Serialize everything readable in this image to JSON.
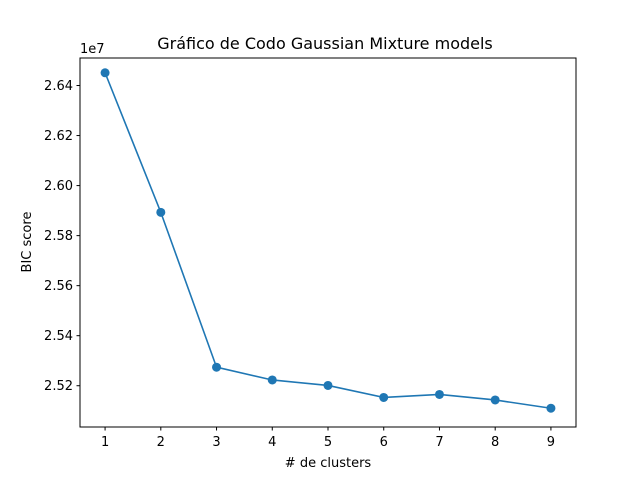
{
  "chart_data": {
    "type": "line",
    "title": "Gráfico de Codo Gaussian Mixture models",
    "xlabel": "# de clusters",
    "ylabel": "BIC score",
    "y_offset_label": "1e7",
    "x": [
      1,
      2,
      3,
      4,
      5,
      6,
      7,
      8,
      9
    ],
    "series": [
      {
        "values": [
          26451000,
          25893000,
          25274000,
          25223000,
          25201000,
          25153000,
          25165000,
          25143000,
          25110000
        ]
      }
    ],
    "xlim": [
      0.55,
      9.45
    ],
    "ylim": [
      25035000,
      26510000
    ],
    "x_ticks": [
      1,
      2,
      3,
      4,
      5,
      6,
      7,
      8,
      9
    ],
    "y_ticks": [
      25200000,
      25400000,
      25600000,
      25800000,
      26000000,
      26200000,
      26400000
    ],
    "y_tick_labels": [
      "2.52",
      "2.54",
      "2.56",
      "2.58",
      "2.60",
      "2.62",
      "2.64"
    ],
    "grid": false,
    "color": "#1f77b4"
  }
}
